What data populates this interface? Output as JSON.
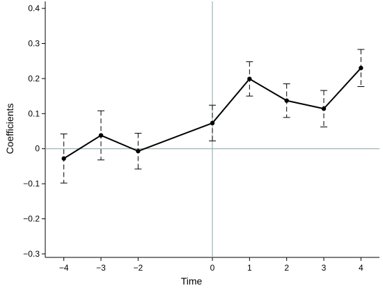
{
  "chart_data": {
    "type": "line",
    "xlabel": "Time",
    "ylabel": "Coefficients",
    "xlim": [
      -4.5,
      4.5
    ],
    "ylim": [
      -0.31,
      0.42
    ],
    "x_ticks": [
      -4,
      -3,
      -2,
      0,
      1,
      2,
      3,
      4
    ],
    "x_tick_labels": [
      "−4",
      "−3",
      "−2",
      "0",
      "1",
      "2",
      "3",
      "4"
    ],
    "y_ticks": [
      -0.3,
      -0.2,
      -0.1,
      0,
      0.1,
      0.2,
      0.3,
      0.4
    ],
    "y_tick_labels": [
      "−0.3",
      "−0.2",
      "−0.1",
      "0",
      "0.1",
      "0.2",
      "0.3",
      "0.4"
    ],
    "reference_lines": {
      "y": 0,
      "x": 0,
      "color": "#a0b0b4"
    },
    "series": [
      {
        "x": [
          -4,
          -3,
          -2,
          0,
          1,
          2,
          3,
          4
        ],
        "values": [
          -0.028,
          0.038,
          -0.007,
          0.073,
          0.199,
          0.137,
          0.114,
          0.23
        ],
        "ci_low": [
          -0.098,
          -0.032,
          -0.058,
          0.022,
          0.15,
          0.089,
          0.062,
          0.177
        ],
        "ci_high": [
          0.042,
          0.108,
          0.044,
          0.124,
          0.248,
          0.185,
          0.166,
          0.283
        ],
        "color": "#000000"
      }
    ],
    "grid": false
  }
}
